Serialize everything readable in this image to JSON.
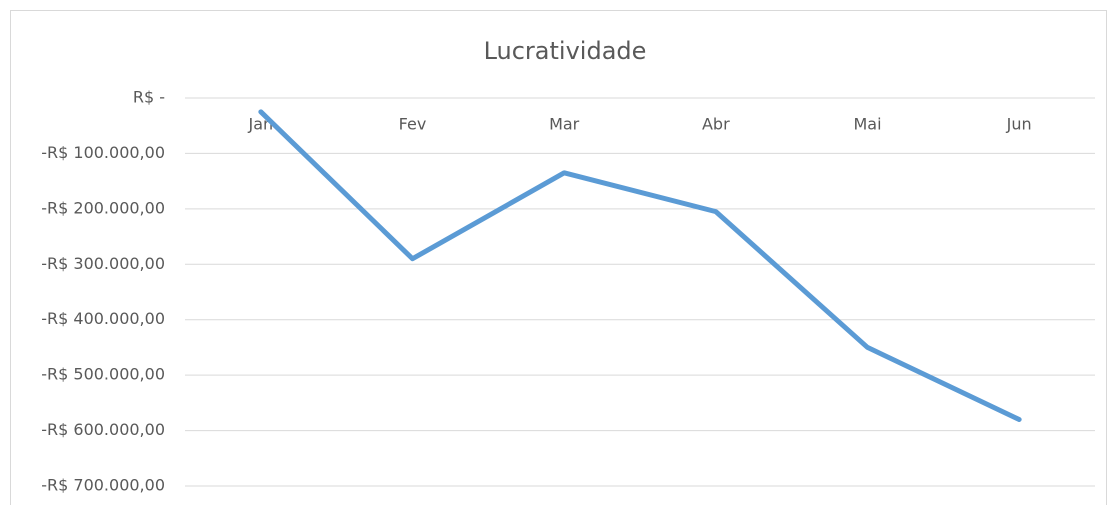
{
  "chart_data": {
    "type": "line",
    "title": "Lucratividade",
    "categories": [
      "Jan",
      "Fev",
      "Mar",
      "Abr",
      "Mai",
      "Jun"
    ],
    "series": [
      {
        "name": "Lucratividade",
        "color": "#5b9bd5",
        "values": [
          -25000,
          -290000,
          -135000,
          -205000,
          -450000,
          -580000
        ]
      }
    ],
    "ylim": [
      -700000,
      0
    ],
    "yticks": [
      {
        "value": 0,
        "label": "R$ -"
      },
      {
        "value": -100000,
        "label": "-R$ 100.000,00"
      },
      {
        "value": -200000,
        "label": "-R$ 200.000,00"
      },
      {
        "value": -300000,
        "label": "-R$ 300.000,00"
      },
      {
        "value": -400000,
        "label": "-R$ 400.000,00"
      },
      {
        "value": -500000,
        "label": "-R$ 500.000,00"
      },
      {
        "value": -600000,
        "label": "-R$ 600.000,00"
      },
      {
        "value": -700000,
        "label": "-R$ 700.000,00"
      }
    ],
    "grid": true
  }
}
